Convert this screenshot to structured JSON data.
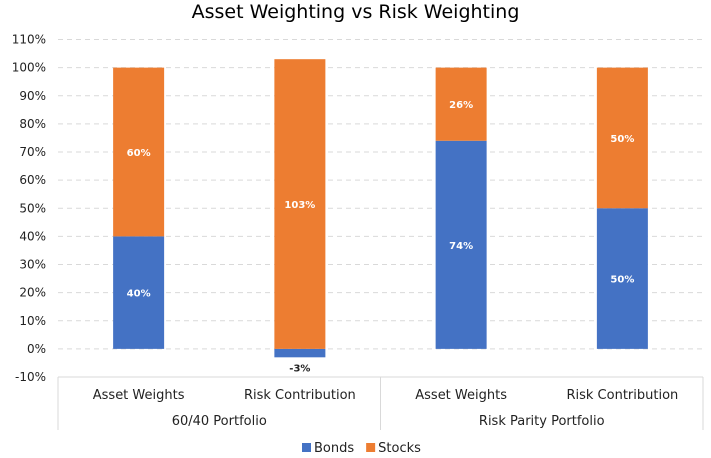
{
  "chart_data": {
    "type": "bar",
    "stacked": true,
    "title": "Asset Weighting vs Risk Weighting",
    "categories": [
      "Asset Weights",
      "Risk Contribution",
      "Asset Weights",
      "Risk Contribution"
    ],
    "groups": [
      {
        "label": "60/40 Portfolio",
        "categories": [
          "Asset Weights",
          "Risk Contribution"
        ]
      },
      {
        "label": "Risk Parity Portfolio",
        "categories": [
          "Asset Weights",
          "Risk Contribution"
        ]
      }
    ],
    "series": [
      {
        "name": "Bonds",
        "color": "#4472C4",
        "values": [
          40,
          -3,
          74,
          50
        ],
        "labels": [
          "40%",
          "-3%",
          "74%",
          "50%"
        ]
      },
      {
        "name": "Stocks",
        "color": "#ED7D31",
        "values": [
          60,
          103,
          26,
          50
        ],
        "labels": [
          "60%",
          "103%",
          "26%",
          "50%"
        ]
      }
    ],
    "ylim": [
      -10,
      110
    ],
    "yticks": [
      -10,
      0,
      10,
      20,
      30,
      40,
      50,
      60,
      70,
      80,
      90,
      100,
      110
    ],
    "ytick_labels": [
      "-10%",
      "0%",
      "10%",
      "20%",
      "30%",
      "40%",
      "50%",
      "60%",
      "70%",
      "80%",
      "90%",
      "100%",
      "110%"
    ],
    "grid": true,
    "legend": "bottom"
  }
}
